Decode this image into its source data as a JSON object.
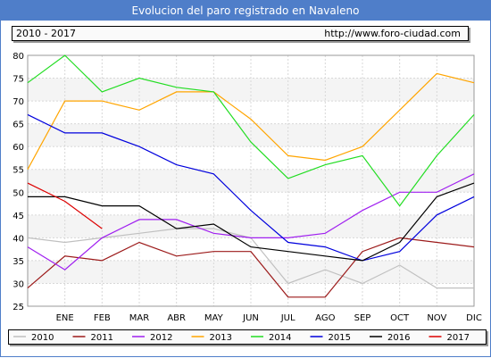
{
  "title": "Evolucion del paro registrado en Navaleno",
  "header_left": "2010 - 2017",
  "header_right": "http://www.foro-ciudad.com",
  "chart_data": {
    "type": "line",
    "categories": [
      "",
      "ENE",
      "FEB",
      "MAR",
      "ABR",
      "MAY",
      "JUN",
      "JUL",
      "AGO",
      "SEP",
      "OCT",
      "NOV",
      "DIC"
    ],
    "ylim": [
      25,
      80
    ],
    "yticks": [
      25,
      30,
      35,
      40,
      45,
      50,
      55,
      60,
      65,
      70,
      75,
      80
    ],
    "grid": true,
    "legend_position": "bottom",
    "series": [
      {
        "name": "2010",
        "color": "#c0c0c0",
        "values": [
          40,
          39,
          40,
          41,
          42,
          42,
          40,
          30,
          33,
          30,
          34,
          29,
          29
        ]
      },
      {
        "name": "2011",
        "color": "#9c1a1a",
        "values": [
          29,
          36,
          35,
          39,
          36,
          37,
          37,
          27,
          27,
          37,
          40,
          39,
          38
        ]
      },
      {
        "name": "2012",
        "color": "#a020f0",
        "values": [
          38,
          33,
          40,
          44,
          44,
          41,
          40,
          40,
          41,
          46,
          50,
          50,
          54
        ]
      },
      {
        "name": "2013",
        "color": "#ffa500",
        "values": [
          55,
          70,
          70,
          68,
          72,
          72,
          66,
          58,
          57,
          60,
          68,
          76,
          74
        ]
      },
      {
        "name": "2014",
        "color": "#22dd22",
        "values": [
          74,
          80,
          72,
          75,
          73,
          72,
          61,
          53,
          56,
          58,
          47,
          58,
          67
        ]
      },
      {
        "name": "2015",
        "color": "#0000dd",
        "values": [
          67,
          63,
          63,
          60,
          56,
          54,
          46,
          39,
          38,
          35,
          37,
          45,
          49
        ]
      },
      {
        "name": "2016",
        "color": "#000000",
        "values": [
          49,
          49,
          47,
          47,
          42,
          43,
          38,
          37,
          36,
          35,
          39,
          49,
          52
        ]
      },
      {
        "name": "2017",
        "color": "#dd0000",
        "values": [
          52,
          48,
          42,
          null,
          null,
          null,
          null,
          null,
          null,
          null,
          null,
          null,
          null
        ]
      }
    ]
  }
}
